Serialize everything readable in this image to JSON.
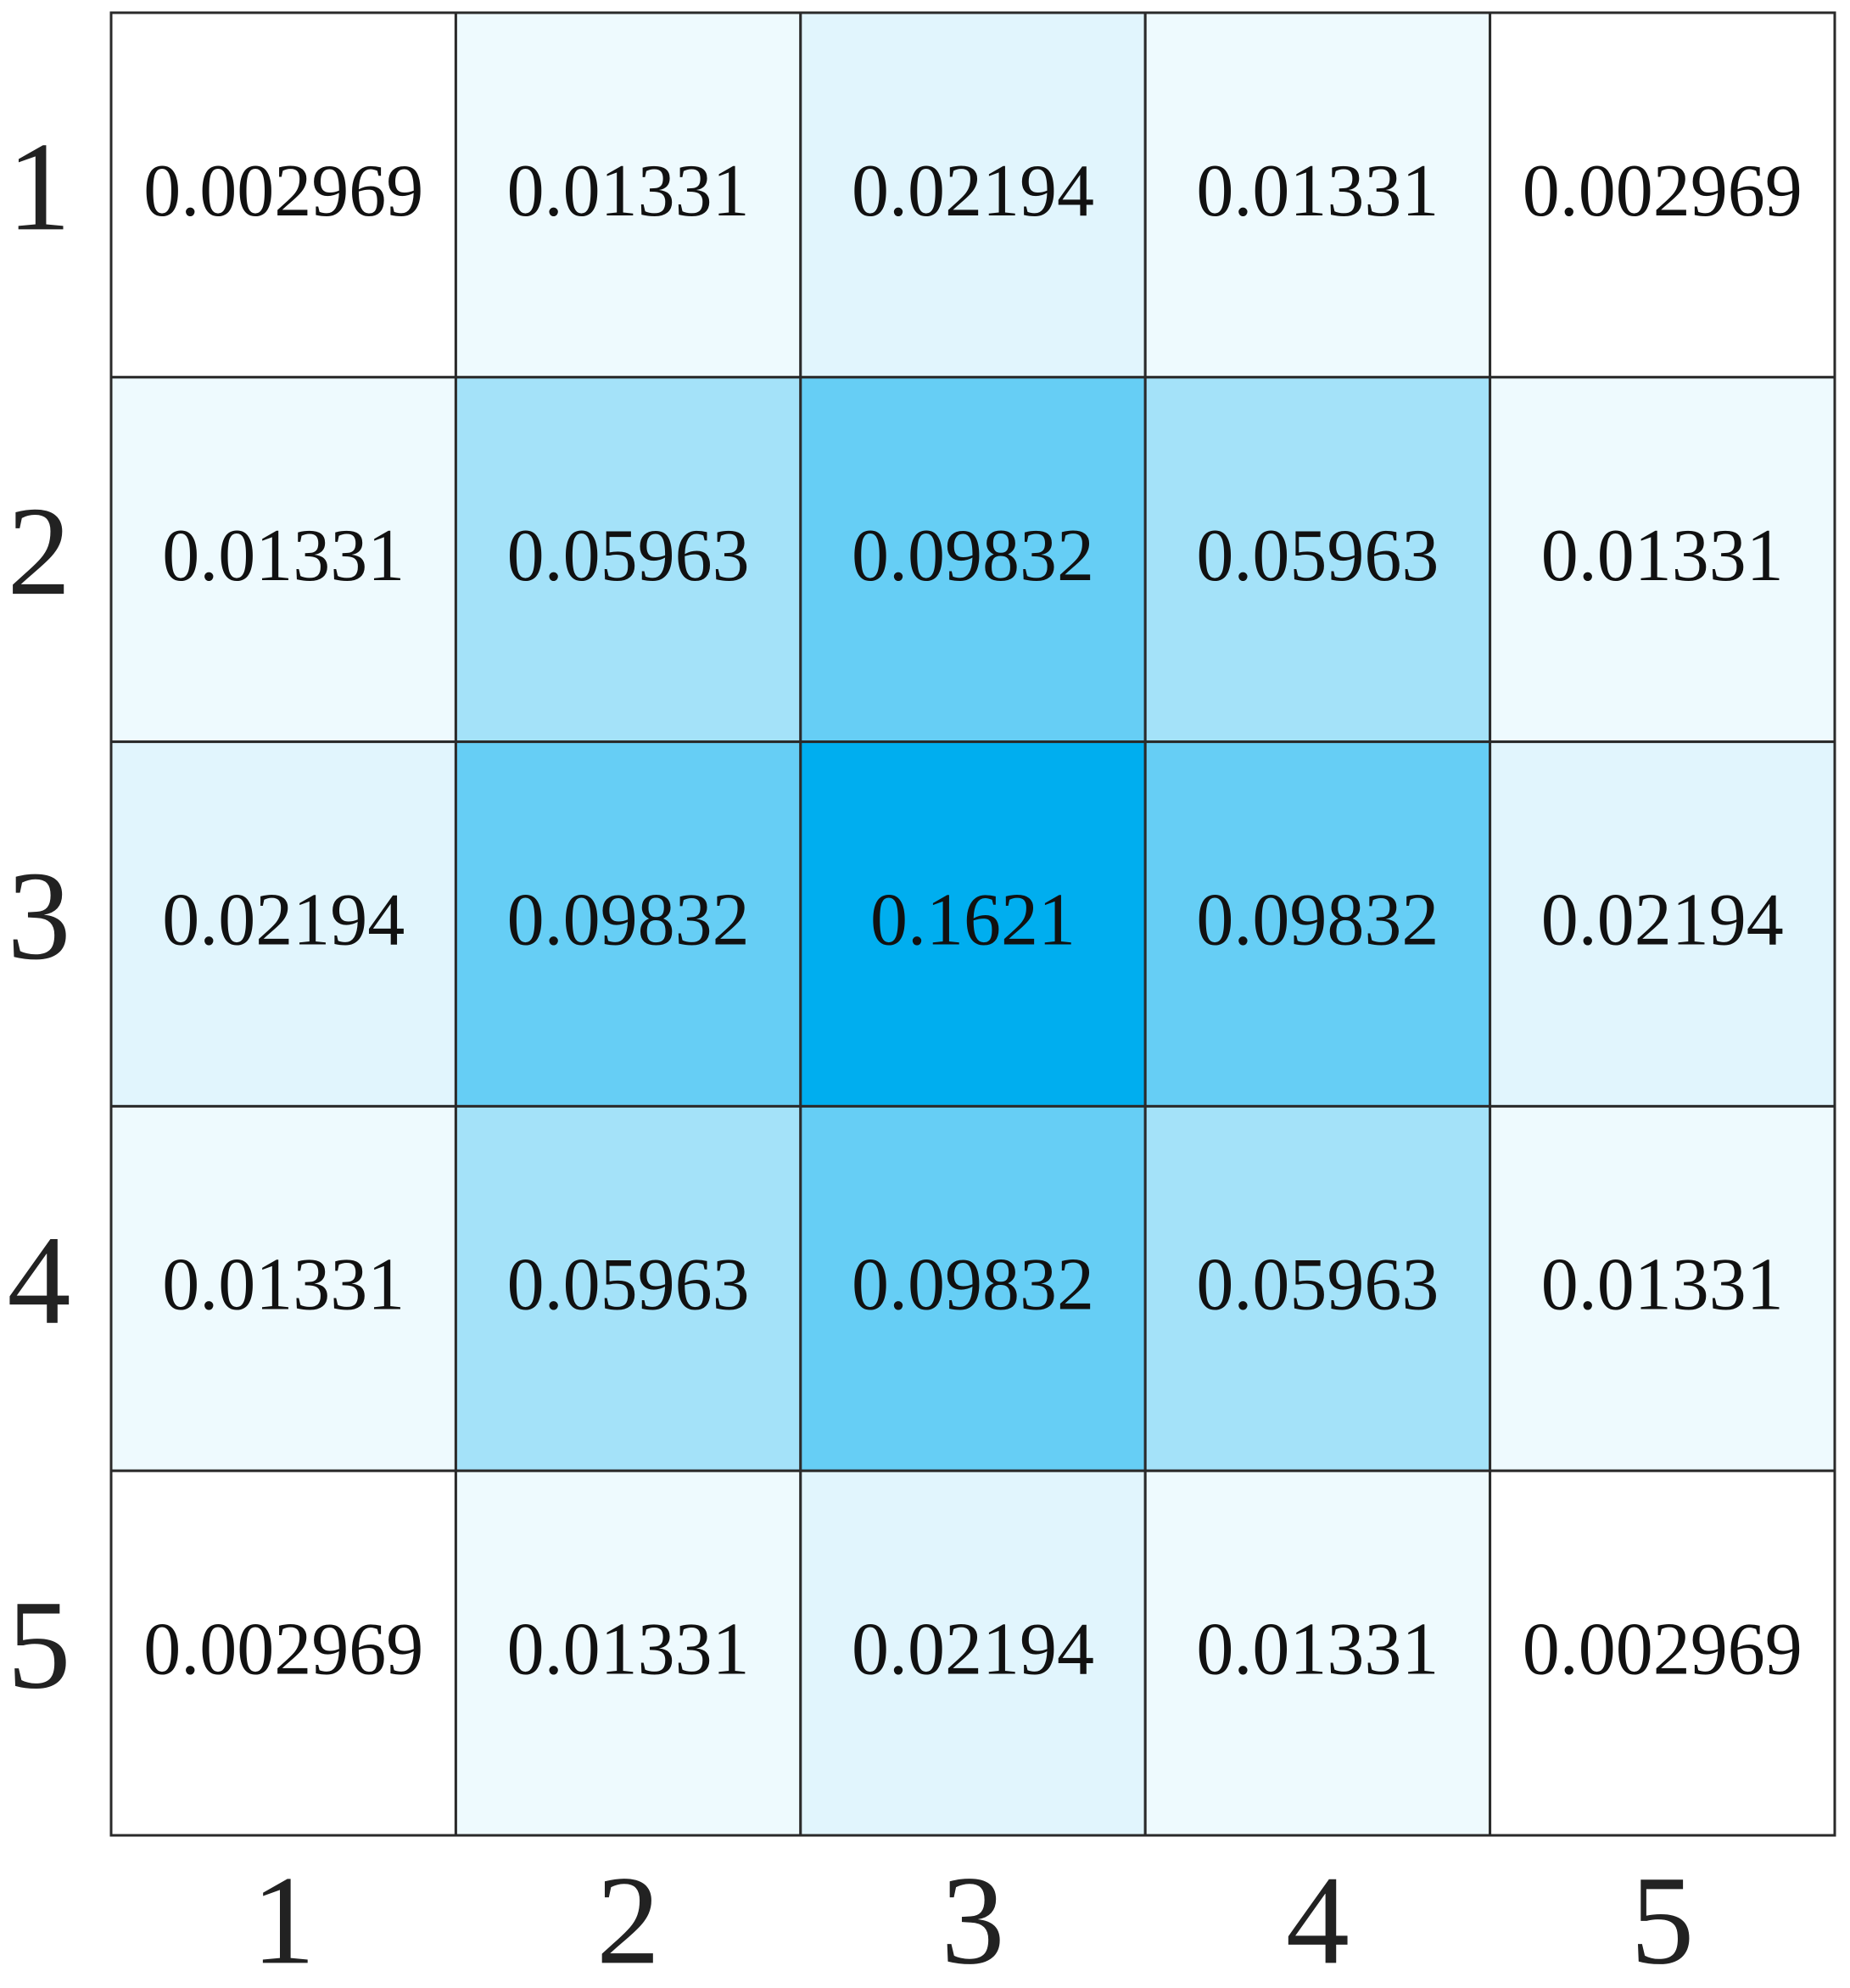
{
  "chart_data": {
    "type": "heatmap",
    "x_categories": [
      1,
      2,
      3,
      4,
      5
    ],
    "y_categories": [
      1,
      2,
      3,
      4,
      5
    ],
    "values": [
      [
        0.002969,
        0.01331,
        0.02194,
        0.01331,
        0.002969
      ],
      [
        0.01331,
        0.05963,
        0.09832,
        0.05963,
        0.01331
      ],
      [
        0.02194,
        0.09832,
        0.1621,
        0.09832,
        0.02194
      ],
      [
        0.01331,
        0.05963,
        0.09832,
        0.05963,
        0.01331
      ],
      [
        0.002969,
        0.01331,
        0.02194,
        0.01331,
        0.002969
      ]
    ],
    "colors": [
      "#ffffff",
      "#00aeef"
    ]
  }
}
